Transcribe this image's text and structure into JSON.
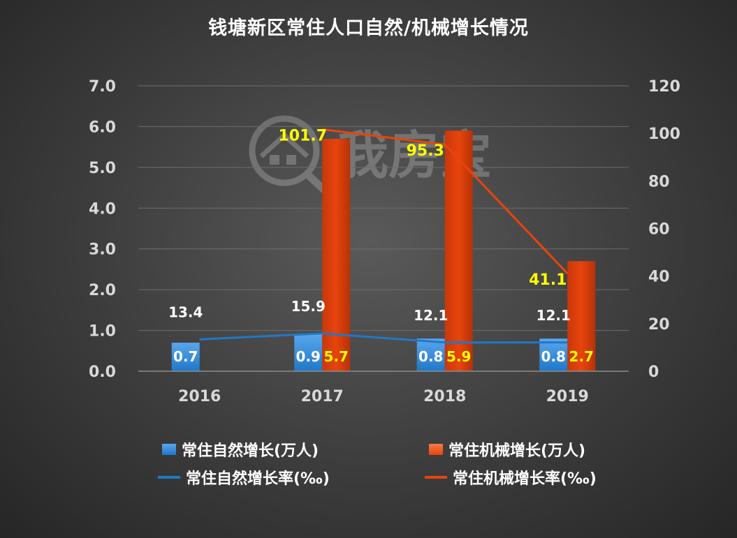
{
  "title": "钱塘新区常住人口自然/机械增长情况",
  "watermark_text": "我房宝",
  "legend": {
    "natural_bar": "常住自然增长(万人)",
    "mech_bar": "常住机械增长(万人)",
    "natural_rate": "常住自然增长率(‰)",
    "mech_rate": "常住机械增长率(‰)"
  },
  "colors": {
    "natural": "#1f78c8",
    "mechanical": "#e8440d",
    "label_yellow": "#ffff00",
    "text": "#ffffff",
    "axis_text": "#d9d9d9",
    "grid": "#6e6e6e"
  },
  "chart_data": {
    "type": "bar",
    "categories": [
      "2016",
      "2017",
      "2018",
      "2019"
    ],
    "y_left": {
      "ylim": [
        0,
        7
      ],
      "ticks": [
        "0.0",
        "1.0",
        "2.0",
        "3.0",
        "4.0",
        "5.0",
        "6.0",
        "7.0"
      ]
    },
    "y_right": {
      "ylim": [
        0,
        120
      ],
      "ticks": [
        "0",
        "20",
        "40",
        "60",
        "80",
        "100",
        "120"
      ]
    },
    "series": [
      {
        "name": "常住自然增长(万人)",
        "kind": "bar",
        "axis": "left",
        "values": [
          0.7,
          0.9,
          0.8,
          0.8
        ],
        "labels": [
          "0.7",
          "0.9",
          "0.8",
          "0.8"
        ]
      },
      {
        "name": "常住机械增长(万人)",
        "kind": "bar",
        "axis": "left",
        "values": [
          null,
          5.7,
          5.9,
          2.7
        ],
        "labels": [
          "",
          "5.7",
          "5.9",
          "2.7"
        ]
      },
      {
        "name": "常住自然增长率(‰)",
        "kind": "line",
        "axis": "right",
        "values": [
          13.4,
          15.9,
          12.1,
          12.1
        ],
        "labels": [
          "13.4",
          "15.9",
          "12.1",
          "12.1"
        ]
      },
      {
        "name": "常住机械增长率(‰)",
        "kind": "line",
        "axis": "right",
        "values": [
          null,
          101.7,
          95.3,
          41.1
        ],
        "labels": [
          "",
          "101.7",
          "95.3",
          "41.1"
        ]
      }
    ],
    "grid": true,
    "legend_position": "bottom"
  }
}
